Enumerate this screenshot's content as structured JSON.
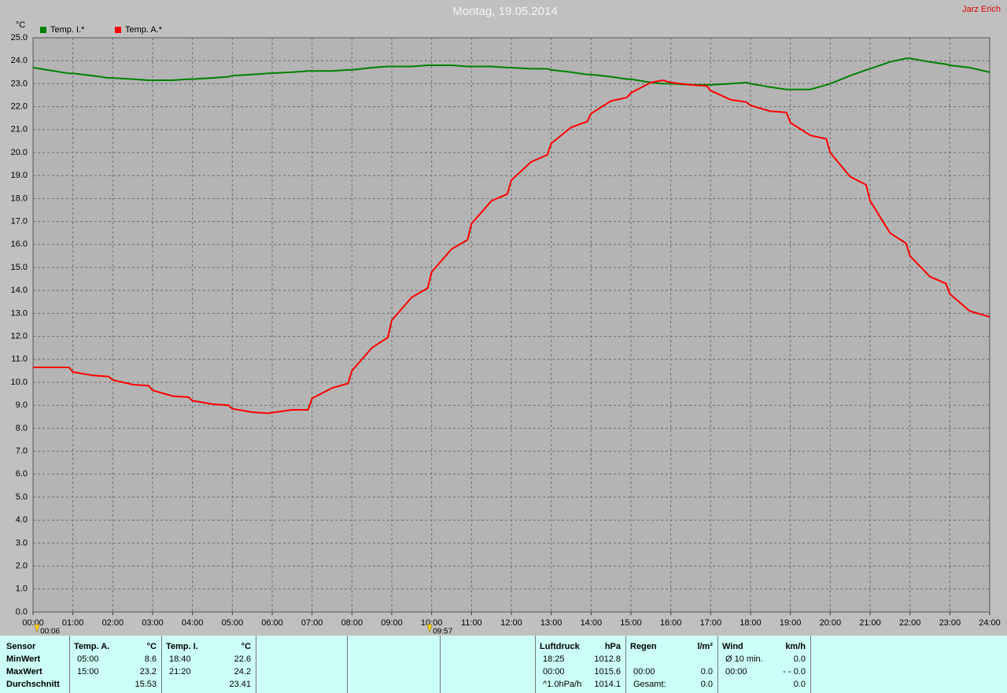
{
  "author": "Jarz Erich",
  "chart_data": {
    "type": "line",
    "title": "Montag, 19.05.2014",
    "y_label": "°C",
    "x": [
      0,
      0.9,
      1.0,
      1.5,
      1.9,
      2.0,
      2.5,
      2.9,
      3.0,
      3.5,
      3.9,
      4.0,
      4.5,
      4.9,
      5.0,
      5.5,
      5.9,
      6.5,
      6.9,
      7.0,
      7.5,
      7.9,
      8.0,
      8.5,
      8.9,
      9.0,
      9.5,
      9.9,
      10.0,
      10.5,
      10.9,
      11.0,
      11.5,
      11.9,
      12.0,
      12.5,
      12.9,
      13.0,
      13.5,
      13.9,
      14.0,
      14.5,
      14.9,
      15.0,
      15.5,
      15.8,
      16.0,
      16.5,
      16.9,
      17.0,
      17.5,
      17.9,
      18.0,
      18.5,
      18.9,
      19.0,
      19.5,
      19.9,
      20.0,
      20.5,
      20.9,
      21.0,
      21.5,
      21.9,
      22.0,
      22.5,
      22.9,
      23.0,
      23.5,
      24.0
    ],
    "series": [
      {
        "name": "Temp. I.*",
        "color": "#008000",
        "values": [
          23.7,
          23.45,
          23.45,
          23.35,
          23.25,
          23.25,
          23.2,
          23.15,
          23.15,
          23.15,
          23.2,
          23.2,
          23.25,
          23.3,
          23.35,
          23.4,
          23.45,
          23.5,
          23.55,
          23.55,
          23.55,
          23.6,
          23.6,
          23.7,
          23.75,
          23.75,
          23.75,
          23.8,
          23.8,
          23.8,
          23.75,
          23.75,
          23.75,
          23.7,
          23.7,
          23.65,
          23.65,
          23.6,
          23.5,
          23.4,
          23.4,
          23.3,
          23.2,
          23.2,
          23.05,
          23.0,
          23.0,
          22.95,
          22.95,
          22.95,
          23.0,
          23.05,
          23.0,
          22.85,
          22.75,
          22.75,
          22.75,
          22.95,
          23.0,
          23.35,
          23.6,
          23.65,
          23.95,
          24.1,
          24.1,
          23.95,
          23.85,
          23.8,
          23.7,
          23.5
        ]
      },
      {
        "name": "Temp. A.*",
        "color": "#ff0000",
        "values": [
          10.65,
          10.65,
          10.45,
          10.3,
          10.25,
          10.1,
          9.9,
          9.85,
          9.65,
          9.4,
          9.35,
          9.2,
          9.05,
          9.0,
          8.85,
          8.7,
          8.65,
          8.8,
          8.8,
          9.3,
          9.75,
          9.95,
          10.5,
          11.5,
          11.95,
          12.7,
          13.7,
          14.1,
          14.8,
          15.8,
          16.2,
          16.9,
          17.9,
          18.2,
          18.8,
          19.6,
          19.9,
          20.4,
          21.1,
          21.35,
          21.7,
          22.25,
          22.4,
          22.6,
          23.05,
          23.15,
          23.05,
          22.95,
          22.9,
          22.7,
          22.3,
          22.2,
          22.05,
          21.8,
          21.75,
          21.3,
          20.75,
          20.6,
          20.0,
          18.95,
          18.6,
          17.9,
          16.5,
          16.05,
          15.5,
          14.6,
          14.3,
          13.85,
          13.1,
          12.85
        ]
      }
    ],
    "xlim": [
      0,
      24
    ],
    "ylim": [
      0,
      25
    ],
    "grid": true,
    "xticks": [
      {
        "value": 0,
        "label": "00:00"
      },
      {
        "value": 1,
        "label": "01:00"
      },
      {
        "value": 2,
        "label": "02:00"
      },
      {
        "value": 3,
        "label": "03:00"
      },
      {
        "value": 4,
        "label": "04:00"
      },
      {
        "value": 5,
        "label": "05:00"
      },
      {
        "value": 6,
        "label": "06:00"
      },
      {
        "value": 7,
        "label": "07:00"
      },
      {
        "value": 8,
        "label": "08:00"
      },
      {
        "value": 9,
        "label": "09:00"
      },
      {
        "value": 10,
        "label": "10:00"
      },
      {
        "value": 11,
        "label": "11:00"
      },
      {
        "value": 12,
        "label": "12:00"
      },
      {
        "value": 13,
        "label": "13:00"
      },
      {
        "value": 14,
        "label": "14:00"
      },
      {
        "value": 15,
        "label": "15:00"
      },
      {
        "value": 16,
        "label": "16:00"
      },
      {
        "value": 17,
        "label": "17:00"
      },
      {
        "value": 18,
        "label": "18:00"
      },
      {
        "value": 19,
        "label": "19:00"
      },
      {
        "value": 20,
        "label": "20:00"
      },
      {
        "value": 21,
        "label": "21:00"
      },
      {
        "value": 22,
        "label": "22:00"
      },
      {
        "value": 23,
        "label": "23:00"
      },
      {
        "value": 24,
        "label": "24:00"
      }
    ],
    "yticks": [
      {
        "value": 0,
        "label": "0.0"
      },
      {
        "value": 1,
        "label": "1.0"
      },
      {
        "value": 2,
        "label": "2.0"
      },
      {
        "value": 3,
        "label": "3.0"
      },
      {
        "value": 4,
        "label": "4.0"
      },
      {
        "value": 5,
        "label": "5.0"
      },
      {
        "value": 6,
        "label": "6.0"
      },
      {
        "value": 7,
        "label": "7.0"
      },
      {
        "value": 8,
        "label": "8.0"
      },
      {
        "value": 9,
        "label": "9.0"
      },
      {
        "value": 10,
        "label": "10.0"
      },
      {
        "value": 11,
        "label": "11.0"
      },
      {
        "value": 12,
        "label": "12.0"
      },
      {
        "value": 13,
        "label": "13.0"
      },
      {
        "value": 14,
        "label": "14.0"
      },
      {
        "value": 15,
        "label": "15.0"
      },
      {
        "value": 16,
        "label": "16.0"
      },
      {
        "value": 17,
        "label": "17.0"
      },
      {
        "value": 18,
        "label": "18.0"
      },
      {
        "value": 19,
        "label": "19.0"
      },
      {
        "value": 20,
        "label": "20.0"
      },
      {
        "value": 21,
        "label": "21.0"
      },
      {
        "value": 22,
        "label": "22.0"
      },
      {
        "value": 23,
        "label": "23.0"
      },
      {
        "value": 24,
        "label": "24.0"
      },
      {
        "value": 25,
        "label": "25.0"
      }
    ],
    "markers": [
      {
        "x": 0.1,
        "label": "00:06"
      },
      {
        "x": 9.95,
        "label": "09:57"
      }
    ]
  },
  "stats_table": {
    "panels": [
      {
        "header": [
          "Sensor"
        ],
        "rows": [
          [
            "MinWert"
          ],
          [
            "MaxWert"
          ],
          [
            "Durchschnitt"
          ]
        ]
      },
      {
        "header": [
          "Temp. A.",
          "°C"
        ],
        "rows": [
          [
            "05:00",
            "8.6"
          ],
          [
            "15:00",
            "23.2"
          ],
          [
            "15.53"
          ]
        ]
      },
      {
        "header": [
          "Temp. I.",
          "°C"
        ],
        "rows": [
          [
            "18:40",
            "22.6"
          ],
          [
            "21:20",
            "24.2"
          ],
          [
            "23.41"
          ]
        ]
      },
      {
        "header": [
          "Luftdruck",
          "hPa"
        ],
        "rows": [
          [
            "18:25",
            "1012.8"
          ],
          [
            "00:00",
            "1015.6"
          ],
          [
            "^1.0hPa/h",
            "1014.1"
          ]
        ]
      },
      {
        "header": [
          "Regen",
          "l/m²"
        ],
        "rows": [
          [],
          [
            "00:00",
            "0.0"
          ],
          [
            "Gesamt:",
            "0.0"
          ]
        ]
      },
      {
        "header": [
          "Wind",
          "km/h"
        ],
        "rows": [
          [
            "Ø 10 min.",
            "0.0"
          ],
          [
            "00:00",
            "- - 0.0"
          ],
          [
            "0.0"
          ]
        ]
      }
    ]
  }
}
